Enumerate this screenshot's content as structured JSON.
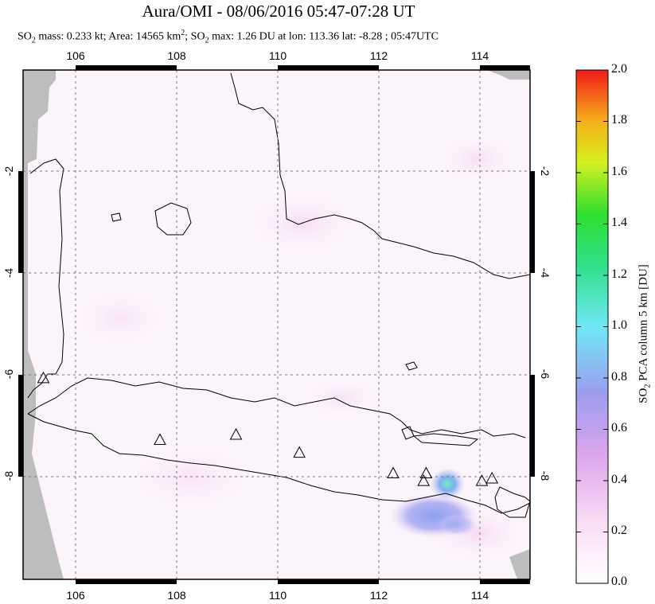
{
  "title": "Aura/OMI - 08/06/2016 05:47-07:28 UT",
  "subtitle": {
    "prefix": "SO",
    "sub": "2",
    "mass_text": " mass: 0.233 kt; Area: 14565 km",
    "sup": "2",
    "rest_prefix": "; SO",
    "sub2": "2",
    "rest": " max: 1.26 DU at lon: 113.36 lat: -8.28 ; 05:47UTC"
  },
  "map": {
    "lon_ticks": [
      "106",
      "108",
      "110",
      "112",
      "114"
    ],
    "lat_ticks": [
      "-2",
      "-4",
      "-6",
      "-8"
    ],
    "extent": {
      "lon_min": 105.0,
      "lon_max": 115.0,
      "lat_min": -10.0,
      "lat_max": -0.1
    },
    "gridlines": "dotted",
    "volcano_markers": [
      {
        "lon": 105.4,
        "lat": -6.1
      },
      {
        "lon": 107.7,
        "lat": -7.3
      },
      {
        "lon": 109.2,
        "lat": -7.2
      },
      {
        "lon": 110.45,
        "lat": -7.55
      },
      {
        "lon": 112.3,
        "lat": -7.95
      },
      {
        "lon": 112.9,
        "lat": -8.1
      },
      {
        "lon": 112.95,
        "lat": -7.95
      },
      {
        "lon": 114.05,
        "lat": -8.1
      },
      {
        "lon": 114.25,
        "lat": -8.05
      }
    ]
  },
  "colorbar": {
    "labels": [
      "2.0",
      "1.8",
      "1.6",
      "1.4",
      "1.2",
      "1.0",
      "0.8",
      "0.6",
      "0.4",
      "0.2",
      "0.0"
    ],
    "title_parts": {
      "a": "SO",
      "sub": "2",
      "b": " PCA column 5 km [DU]"
    },
    "range": [
      0.0,
      2.0
    ],
    "colors": [
      "#ffffff",
      "#f7c9f0",
      "#9d9cf0",
      "#6fe8f5",
      "#2fe02f",
      "#f5f020",
      "#f59a1a",
      "#f21a1a"
    ]
  }
}
